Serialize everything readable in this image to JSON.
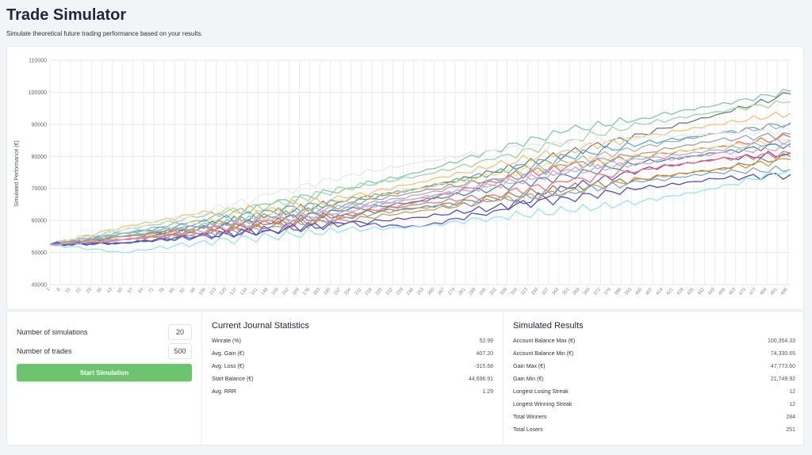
{
  "header": {
    "title": "Trade Simulator",
    "subtitle": "Simulate theoretical future trading performance based on your results."
  },
  "controls": {
    "simulations_label": "Number of simulations",
    "simulations_value": "20",
    "trades_label": "Number of trades",
    "trades_value": "500",
    "start_label": "Start Simulation",
    "start_color": "#6cc46c"
  },
  "journal": {
    "title": "Current Journal Statistics",
    "rows": [
      {
        "label": "Winrate (%)",
        "value": "52.99"
      },
      {
        "label": "Avg. Gain (€)",
        "value": "407.20"
      },
      {
        "label": "Avg. Loss (€)",
        "value": "-315.68"
      },
      {
        "label": "Start Balance (€)",
        "value": "44,696.91"
      },
      {
        "label": "Avg. RRR",
        "value": "1.29"
      }
    ]
  },
  "results": {
    "title": "Simulated Results",
    "rows": [
      {
        "label": "Account Balance Max (€)",
        "value": "100,354.33"
      },
      {
        "label": "Account Balance Min (€)",
        "value": "74,330.65"
      },
      {
        "label": "Gain Max (€)",
        "value": "47,773.60"
      },
      {
        "label": "Gain Min (€)",
        "value": "21,749.92"
      },
      {
        "label": "Longest Losing Streak",
        "value": "12"
      },
      {
        "label": "Longest Winning Streak",
        "value": "12"
      },
      {
        "label": "Total Winners",
        "value": "284"
      },
      {
        "label": "Total Losers",
        "value": "251"
      }
    ]
  },
  "chart_data": {
    "type": "line",
    "ylabel": "Simulated Performance (€)",
    "ylim": [
      40000,
      110000
    ],
    "yticks": [
      40000,
      50000,
      60000,
      70000,
      80000,
      90000,
      100000,
      110000
    ],
    "xlim": [
      1,
      500
    ],
    "xticks_start": 1,
    "xticks_step": 7,
    "xticks_end": 498,
    "grid": true,
    "x": [
      1,
      50,
      100,
      150,
      200,
      250,
      300,
      350,
      400,
      450,
      500
    ],
    "series": [
      {
        "color": "#7fc8b0",
        "values": [
          52500,
          56000,
          60000,
          65000,
          70000,
          75000,
          82000,
          88000,
          92000,
          96000,
          100300
        ]
      },
      {
        "color": "#6b7f7a",
        "values": [
          52500,
          55000,
          58000,
          62000,
          66000,
          70000,
          75000,
          81000,
          87000,
          93000,
          99500
        ]
      },
      {
        "color": "#9fd6a0",
        "values": [
          52500,
          57000,
          61000,
          65000,
          70000,
          74000,
          79000,
          85000,
          90000,
          94000,
          97000
        ]
      },
      {
        "color": "#f6c177",
        "values": [
          52500,
          58000,
          62000,
          64000,
          67000,
          72000,
          77000,
          82000,
          86000,
          90000,
          93500
        ]
      },
      {
        "color": "#5aaccb",
        "values": [
          52500,
          56000,
          59000,
          63000,
          66000,
          70000,
          75000,
          80000,
          84000,
          87000,
          90500
        ]
      },
      {
        "color": "#b0b0b0",
        "values": [
          52500,
          55000,
          58000,
          61000,
          64000,
          68000,
          73000,
          78000,
          83000,
          87000,
          90000
        ]
      },
      {
        "color": "#e8e8e8",
        "values": [
          52500,
          57000,
          62000,
          68000,
          74000,
          78000,
          82000,
          84000,
          86000,
          87000,
          88000
        ]
      },
      {
        "color": "#e07070",
        "values": [
          52500,
          54000,
          56000,
          58000,
          61000,
          66000,
          72000,
          77000,
          80000,
          83000,
          86000
        ]
      },
      {
        "color": "#f4e07a",
        "values": [
          52500,
          55000,
          59000,
          62000,
          66000,
          70000,
          74000,
          78000,
          80000,
          83000,
          85000
        ]
      },
      {
        "color": "#9ab9e8",
        "values": [
          52500,
          56000,
          58000,
          61000,
          64000,
          67000,
          71000,
          76000,
          79000,
          82000,
          85000
        ]
      },
      {
        "color": "#3d8fa0",
        "values": [
          52500,
          54000,
          57000,
          60000,
          63000,
          66000,
          70000,
          74000,
          78000,
          81000,
          84000
        ]
      },
      {
        "color": "#5b4fd6",
        "values": [
          52500,
          53000,
          55000,
          57000,
          59000,
          58000,
          63000,
          70000,
          76000,
          79000,
          81000
        ]
      },
      {
        "color": "#ff6b6b",
        "values": [
          52500,
          54000,
          56000,
          59000,
          62000,
          65000,
          68000,
          72000,
          76000,
          79000,
          81000
        ]
      },
      {
        "color": "#8a8a5a",
        "values": [
          52500,
          55000,
          57000,
          59000,
          62000,
          64000,
          67000,
          70000,
          73000,
          76000,
          80000
        ]
      },
      {
        "color": "#d89a3a",
        "values": [
          52500,
          54000,
          56000,
          58000,
          60000,
          63000,
          66000,
          69000,
          73000,
          76000,
          79000
        ]
      },
      {
        "color": "#7aa6d6",
        "values": [
          52500,
          53000,
          55000,
          58000,
          61000,
          64000,
          66000,
          69000,
          72000,
          75000,
          76000
        ]
      },
      {
        "color": "#4a4fc8",
        "values": [
          52500,
          53000,
          55000,
          57000,
          59000,
          61000,
          64000,
          67000,
          70000,
          73000,
          74300
        ]
      },
      {
        "color": "#8fe8e8",
        "values": [
          52500,
          50000,
          53000,
          55000,
          57000,
          58000,
          61000,
          63000,
          66000,
          70000,
          76000
        ]
      },
      {
        "color": "#a0a0a0",
        "values": [
          52500,
          55000,
          58000,
          61000,
          65000,
          69000,
          73000,
          77000,
          81000,
          85000,
          87000
        ]
      },
      {
        "color": "#e79ac8",
        "values": [
          52500,
          54000,
          57000,
          60000,
          63000,
          67000,
          71000,
          75000,
          78000,
          81000,
          83000
        ]
      }
    ]
  }
}
